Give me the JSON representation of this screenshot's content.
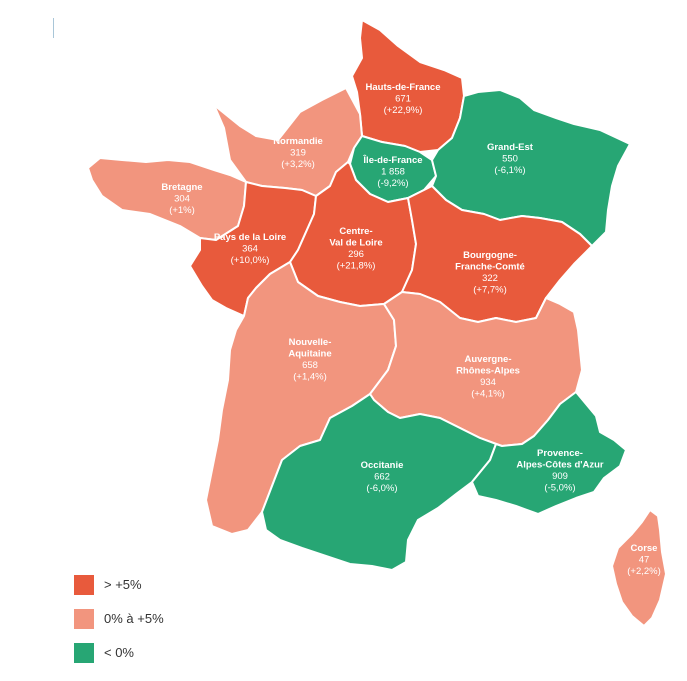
{
  "colors": {
    "high": "#e85a3c",
    "mid": "#f2957e",
    "low": "#27a674"
  },
  "regions": {
    "hdf": {
      "name": [
        "Hauts-de-France"
      ],
      "value": "671",
      "change": "(+22,9%)",
      "class": "high"
    },
    "norm": {
      "name": [
        "Normandie"
      ],
      "value": "319",
      "change": "(+3,2%)",
      "class": "mid"
    },
    "idf": {
      "name": [
        "Île-de-France"
      ],
      "value": "1 858",
      "change": "(-9,2%)",
      "class": "low"
    },
    "ge": {
      "name": [
        "Grand-Est"
      ],
      "value": "550",
      "change": "(-6,1%)",
      "class": "low"
    },
    "bret": {
      "name": [
        "Bretagne"
      ],
      "value": "304",
      "change": "(+1%)",
      "class": "mid"
    },
    "pdl": {
      "name": [
        "Pays de la Loire"
      ],
      "value": "364",
      "change": "(+10,0%)",
      "class": "high"
    },
    "cvl": {
      "name": [
        "Centre-",
        "Val de Loire"
      ],
      "value": "296",
      "change": "(+21,8%)",
      "class": "high"
    },
    "bfc": {
      "name": [
        "Bourgogne-",
        "Franche-Comté"
      ],
      "value": "322",
      "change": "(+7,7%)",
      "class": "high"
    },
    "na": {
      "name": [
        "Nouvelle-",
        "Aquitaine"
      ],
      "value": "658",
      "change": "(+1,4%)",
      "class": "mid"
    },
    "ara": {
      "name": [
        "Auvergne-",
        "Rhônes-Alpes"
      ],
      "value": "934",
      "change": "(+4,1%)",
      "class": "mid"
    },
    "occ": {
      "name": [
        "Occitanie"
      ],
      "value": "662",
      "change": "(-6,0%)",
      "class": "low"
    },
    "paca": {
      "name": [
        "Provence-",
        "Alpes-Côtes d'Azur"
      ],
      "value": "909",
      "change": "(-5,0%)",
      "class": "low"
    },
    "corse": {
      "name": [
        "Corse"
      ],
      "value": "47",
      "change": "(+2,2%)",
      "class": "mid"
    }
  },
  "legend": [
    {
      "label": "> +5%",
      "class": "high"
    },
    {
      "label": "0% à +5%",
      "class": "mid"
    },
    {
      "label": "< 0%",
      "class": "low"
    }
  ]
}
